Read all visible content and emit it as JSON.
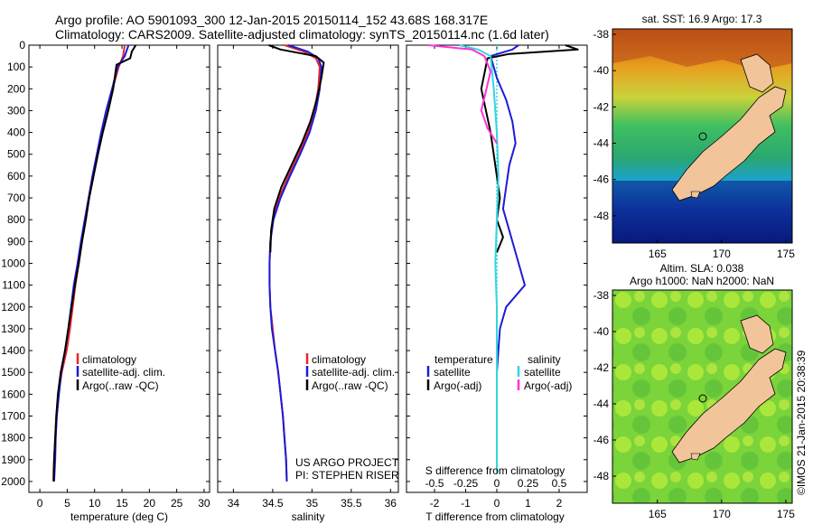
{
  "header": {
    "title_line1": "Argo profile: AO 5901093_300 12-Jan-2015 20150114_152 43.68S 168.317E",
    "title_line2": "Climatology: CARS2009. Satellite-adjusted climatology: synTS_20150114.nc (1.6d later)"
  },
  "colors": {
    "climatology": "#e8262b",
    "satellite": "#1c1cd6",
    "argo": "#000000",
    "sal_satellite": "#33d6e0",
    "sal_argo": "#ff33d6",
    "land": "#f2c49a"
  },
  "chart_data": [
    {
      "type": "line",
      "panel": "temperature",
      "xlabel": "temperature (deg C)",
      "ylabel": "",
      "xlim": [
        -2,
        31
      ],
      "ylim": [
        2050,
        0
      ],
      "xticks": [
        0,
        5,
        10,
        15,
        20,
        25,
        30
      ],
      "yticks": [
        0,
        100,
        200,
        300,
        400,
        500,
        600,
        700,
        800,
        900,
        1000,
        1100,
        1200,
        1300,
        1400,
        1500,
        1600,
        1700,
        1800,
        1900,
        2000
      ],
      "legend": [
        "climatology",
        "satellite-adj. clim.",
        "Argo(..raw -QC)"
      ],
      "legend_position": "lower-center",
      "series": [
        {
          "name": "climatology",
          "color": "#e8262b",
          "x": [
            15.5,
            15.2,
            14.4,
            13.3,
            12.3,
            11.4,
            10.6,
            9.8,
            9.0,
            8.4,
            7.7,
            7.1,
            6.5,
            6.0,
            5.5,
            4.9,
            4.0,
            3.4,
            3.0,
            2.8,
            2.6,
            2.5,
            2.5
          ],
          "y": [
            0,
            50,
            100,
            200,
            300,
            400,
            500,
            600,
            700,
            800,
            900,
            1000,
            1100,
            1200,
            1300,
            1400,
            1500,
            1600,
            1700,
            1800,
            1900,
            1950,
            2000
          ]
        },
        {
          "name": "satellite-adj. clim.",
          "color": "#1c1cd6",
          "x": [
            16.2,
            15.5,
            14.2,
            13.2,
            12.1,
            11.2,
            10.4,
            9.6,
            8.9,
            8.2,
            7.5,
            6.9,
            6.2,
            5.7,
            5.2,
            4.6,
            3.9,
            3.5,
            3.1,
            2.9,
            2.8,
            2.7,
            2.6
          ],
          "y": [
            0,
            50,
            100,
            200,
            300,
            400,
            500,
            600,
            700,
            800,
            900,
            1000,
            1100,
            1200,
            1300,
            1400,
            1500,
            1600,
            1700,
            1800,
            1900,
            1950,
            2000
          ]
        },
        {
          "name": "Argo(..raw -QC)",
          "color": "#000000",
          "x": [
            17.5,
            16.8,
            16.5,
            14.0,
            13.4,
            12.5,
            11.5,
            10.6,
            9.8,
            9.0,
            8.4,
            7.7,
            7.1,
            6.4,
            5.8,
            5.2,
            4.6,
            3.8,
            3.3,
            3.0,
            2.8,
            2.6,
            2.5
          ],
          "y": [
            0,
            30,
            60,
            90,
            200,
            300,
            400,
            500,
            600,
            700,
            800,
            900,
            1000,
            1100,
            1200,
            1300,
            1400,
            1500,
            1600,
            1700,
            1800,
            1900,
            2000
          ]
        }
      ]
    },
    {
      "type": "line",
      "panel": "salinity",
      "xlabel": "salinity",
      "xlim": [
        33.8,
        36.1
      ],
      "ylim": [
        2050,
        0
      ],
      "xticks": [
        34,
        34.5,
        35,
        35.5,
        36
      ],
      "xticklabels": [
        "34",
        "34.5",
        "35",
        "35.5",
        "36"
      ],
      "legend": [
        "climatology",
        "satellite-adj. clim.",
        "Argo(..raw -QC)"
      ],
      "legend_position": "lower-right",
      "annotation": [
        "US ARGO PROJECT",
        "PI: STEPHEN RISER"
      ],
      "series": [
        {
          "name": "climatology",
          "color": "#e8262b",
          "x": [
            34.65,
            34.9,
            35.05,
            35.1,
            35.08,
            35.03,
            34.95,
            34.83,
            34.7,
            34.58,
            34.5,
            34.47,
            34.46,
            34.46,
            34.47,
            34.5,
            34.53,
            34.57,
            34.6,
            34.63,
            34.65,
            34.67,
            34.68
          ],
          "y": [
            0,
            30,
            60,
            100,
            200,
            300,
            400,
            500,
            600,
            700,
            800,
            900,
            1000,
            1100,
            1200,
            1300,
            1400,
            1500,
            1600,
            1700,
            1800,
            1900,
            2000
          ]
        },
        {
          "name": "satellite-adj. clim.",
          "color": "#1c1cd6",
          "x": [
            34.7,
            34.95,
            35.08,
            35.12,
            35.1,
            35.05,
            34.97,
            34.85,
            34.72,
            34.6,
            34.51,
            34.47,
            34.46,
            34.46,
            34.47,
            34.49,
            34.53,
            34.57,
            34.6,
            34.63,
            34.65,
            34.67,
            34.68
          ],
          "y": [
            0,
            30,
            60,
            100,
            200,
            300,
            400,
            500,
            600,
            700,
            800,
            900,
            1000,
            1100,
            1200,
            1300,
            1400,
            1500,
            1600,
            1700,
            1800,
            1900,
            2000
          ]
        },
        {
          "name": "Argo(..raw -QC)",
          "color": "#000000",
          "x": [
            34.45,
            34.6,
            35.05,
            35.15,
            35.12,
            35.06,
            34.98,
            34.87,
            34.74,
            34.61,
            34.52,
            34.48,
            34.47
          ],
          "y": [
            0,
            20,
            50,
            80,
            150,
            250,
            350,
            450,
            550,
            650,
            750,
            850,
            950
          ]
        }
      ]
    },
    {
      "type": "line",
      "panel": "difference",
      "xlabel": "T difference from climatology",
      "xlabel_top": "S difference from climatology",
      "xlim": [
        -2.9,
        2.9
      ],
      "ylim": [
        2050,
        0
      ],
      "xticks": [
        -2,
        -1,
        0,
        1,
        2
      ],
      "xticklabels": [
        "-2",
        "-1",
        "0",
        "1",
        "2"
      ],
      "sticklabels": [
        "-0.5",
        "-0.25",
        "0",
        "0.25",
        "0.5"
      ],
      "legend_headers": [
        "temperature",
        "salinity"
      ],
      "legend": [
        "satellite",
        "Argo(-adj)",
        "satellite",
        "Argo(-adj)"
      ],
      "legend_position": "lower-center",
      "series": [
        {
          "name": "satellite",
          "color": "#1c1cd6",
          "x": [
            0.7,
            0.5,
            -0.2,
            0.0,
            0.3,
            0.5,
            0.6,
            0.4,
            0.3,
            0.2,
            0.4,
            0.6,
            0.9,
            0.3,
            0.1,
            0.05,
            0.0,
            0.0,
            0.0,
            0.0
          ],
          "y": [
            0,
            20,
            50,
            150,
            250,
            350,
            450,
            550,
            650,
            750,
            850,
            950,
            1100,
            1200,
            1300,
            1400,
            1500,
            1700,
            1900,
            1960
          ]
        },
        {
          "name": "Argo(-adj)",
          "color": "#000000",
          "x": [
            2.2,
            2.6,
            0.4,
            -0.3,
            -0.5,
            -0.2,
            0.0,
            0.1,
            0.0,
            0.2,
            0.0
          ],
          "y": [
            0,
            20,
            40,
            60,
            200,
            400,
            600,
            700,
            800,
            880,
            950
          ]
        },
        {
          "name": "satellite",
          "color": "#33d6e0",
          "axis": "S",
          "x": [
            -1.2,
            -0.6,
            -0.2,
            -0.1,
            0.0,
            0.05,
            0.0,
            -0.05,
            0.0,
            0.0,
            0.0,
            0.0,
            0.0
          ],
          "y": [
            0,
            20,
            50,
            200,
            400,
            600,
            800,
            1000,
            1200,
            1400,
            1600,
            1800,
            1960
          ]
        },
        {
          "name": "Argo(-adj)",
          "color": "#ff33d6",
          "axis": "S",
          "x": [
            -2.2,
            -0.8,
            -0.4,
            -0.2,
            -0.5,
            -0.3,
            0.0
          ],
          "y": [
            0,
            20,
            50,
            120,
            300,
            380,
            450
          ]
        }
      ]
    },
    {
      "type": "heatmap",
      "panel": "sst-map",
      "title": "sat. SST: 16.9 Argo: 17.3",
      "xticks": [
        165,
        170,
        175
      ],
      "yticks": [
        -38,
        -40,
        -42,
        -44,
        -46,
        -48
      ],
      "xlim": [
        161.5,
        175.5
      ],
      "ylim": [
        -49.5,
        -37.7
      ]
    },
    {
      "type": "heatmap",
      "panel": "sla-map",
      "title_line1": "Altim. SLA: 0.038",
      "title_line2": "Argo h1000: NaN h2000: NaN",
      "xticks": [
        165,
        170,
        175
      ],
      "yticks": [
        -38,
        -40,
        -42,
        -44,
        -46,
        -48
      ],
      "xlim": [
        161.5,
        175.5
      ],
      "ylim": [
        -49.5,
        -37.7
      ]
    }
  ],
  "footer": {
    "stamp": "©IMOS 21-Jan-2015 20:38:39"
  }
}
